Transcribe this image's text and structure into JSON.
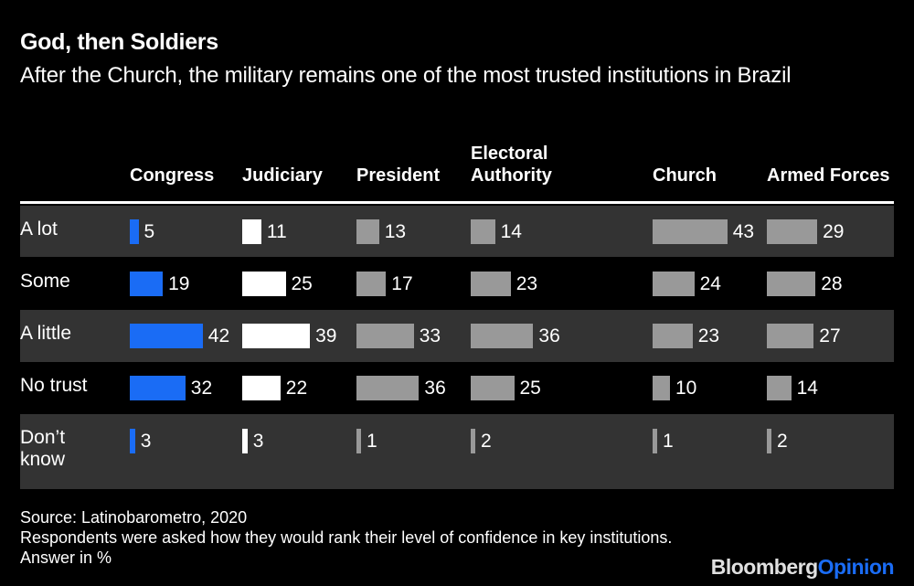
{
  "chart_data": {
    "type": "bar",
    "title": "God, then Soldiers",
    "subtitle": "After the Church, the military remains one of the most trusted institutions in Brazil",
    "categories": [
      "A lot",
      "Some",
      "A little",
      "No trust",
      "Don’t know"
    ],
    "series": [
      {
        "name": "Congress",
        "values": [
          5,
          19,
          42,
          32,
          3
        ],
        "color": "#1a6cf5"
      },
      {
        "name": "Judiciary",
        "values": [
          11,
          25,
          39,
          22,
          3
        ],
        "color": "#ffffff"
      },
      {
        "name": "President",
        "values": [
          13,
          17,
          33,
          36,
          1
        ],
        "color": "#999999"
      },
      {
        "name": "Electoral Authority",
        "values": [
          14,
          23,
          36,
          25,
          2
        ],
        "color": "#999999"
      },
      {
        "name": "Church",
        "values": [
          43,
          24,
          23,
          10,
          1
        ],
        "color": "#999999"
      },
      {
        "name": "Armed Forces",
        "values": [
          29,
          28,
          27,
          14,
          2
        ],
        "color": "#999999"
      }
    ],
    "unit": "%"
  },
  "footer": {
    "source": "Source: Latinobarometro, 2020",
    "note": "Respondents were asked how they would rank their level of confidence in key institutions. Answer in %",
    "logo": {
      "brand": "Bloomberg",
      "section": "Opinion"
    }
  }
}
